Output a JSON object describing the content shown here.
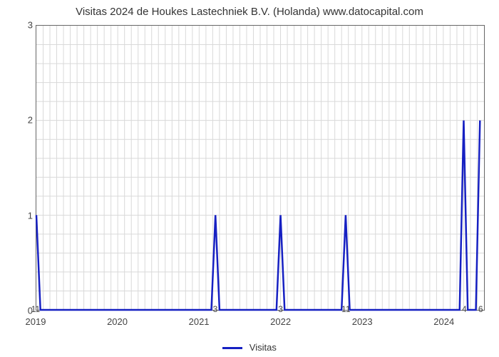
{
  "chart": {
    "type": "line",
    "title": "Visitas 2024 de Houkes Lastechniek B.V. (Holanda) www.datocapital.com",
    "title_fontsize": 15,
    "background_color": "#ffffff",
    "grid_color": "#d9d9d9",
    "border_color": "#666666",
    "line_color": "#1620c2",
    "line_width": 2.5,
    "ylim": [
      0,
      3
    ],
    "yticks": [
      0,
      1,
      2,
      3
    ],
    "n_gridlines_minor_y": 15,
    "xlim": [
      2019,
      2024.5
    ],
    "xticks": [
      2019,
      2020,
      2021,
      2022,
      2023,
      2024
    ],
    "xtick_labels": [
      "2019",
      "2020",
      "2021",
      "2022",
      "2023",
      "2024"
    ],
    "n_gridlines_x_per_year": 12,
    "legend_label": "Visitas",
    "data_points": [
      {
        "x": 2019.0,
        "y": 1
      },
      {
        "x": 2019.05,
        "y": 0
      },
      {
        "x": 2021.15,
        "y": 0
      },
      {
        "x": 2021.2,
        "y": 1
      },
      {
        "x": 2021.25,
        "y": 0
      },
      {
        "x": 2021.95,
        "y": 0
      },
      {
        "x": 2022.0,
        "y": 1
      },
      {
        "x": 2022.05,
        "y": 0
      },
      {
        "x": 2022.75,
        "y": 0
      },
      {
        "x": 2022.8,
        "y": 1
      },
      {
        "x": 2022.85,
        "y": 0
      },
      {
        "x": 2024.2,
        "y": 0
      },
      {
        "x": 2024.25,
        "y": 2
      },
      {
        "x": 2024.3,
        "y": 0
      },
      {
        "x": 2024.4,
        "y": 0
      },
      {
        "x": 2024.45,
        "y": 2
      }
    ],
    "peak_labels": [
      {
        "x": 2019.0,
        "text": "11"
      },
      {
        "x": 2021.2,
        "text": "3"
      },
      {
        "x": 2022.0,
        "text": "3"
      },
      {
        "x": 2022.8,
        "text": "11"
      },
      {
        "x": 2024.25,
        "text": "4"
      },
      {
        "x": 2024.45,
        "text": "6"
      }
    ]
  }
}
